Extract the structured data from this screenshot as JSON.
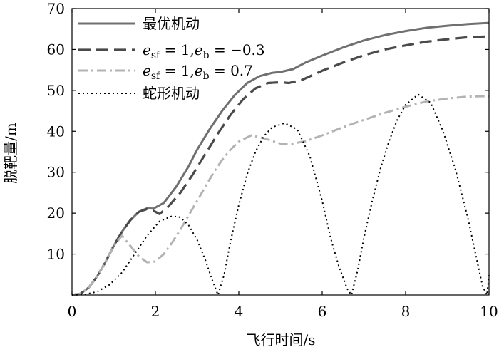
{
  "chart_data": {
    "type": "line",
    "title": "",
    "xlabel": "飞行时间/s",
    "ylabel": "脱靶量/m",
    "xlim": [
      0,
      10
    ],
    "ylim": [
      0,
      70
    ],
    "xticks": [
      0,
      2,
      4,
      6,
      8,
      10
    ],
    "yticks": [
      10,
      20,
      30,
      40,
      50,
      60,
      70
    ],
    "grid": false,
    "legend_position": "top-left",
    "series": [
      {
        "name": "最优机动",
        "legend_parts": {
          "main": "最优机动"
        },
        "color": "#707070",
        "dash": "solid",
        "points": [
          [
            0.0,
            0.0
          ],
          [
            0.2,
            0.3
          ],
          [
            0.4,
            1.8
          ],
          [
            0.6,
            4.5
          ],
          [
            0.8,
            8.0
          ],
          [
            1.0,
            12.0
          ],
          [
            1.2,
            15.5
          ],
          [
            1.4,
            18.3
          ],
          [
            1.6,
            20.3
          ],
          [
            1.8,
            21.2
          ],
          [
            1.95,
            21.1
          ],
          [
            2.2,
            22.5
          ],
          [
            2.5,
            26.5
          ],
          [
            2.8,
            31.5
          ],
          [
            3.0,
            35.5
          ],
          [
            3.3,
            40.5
          ],
          [
            3.6,
            45.0
          ],
          [
            3.9,
            48.8
          ],
          [
            4.2,
            51.8
          ],
          [
            4.5,
            53.5
          ],
          [
            4.8,
            54.3
          ],
          [
            5.0,
            54.5
          ],
          [
            5.3,
            55.2
          ],
          [
            5.6,
            56.8
          ],
          [
            6.0,
            58.5
          ],
          [
            6.5,
            60.5
          ],
          [
            7.0,
            62.2
          ],
          [
            7.5,
            63.5
          ],
          [
            8.0,
            64.5
          ],
          [
            8.5,
            65.3
          ],
          [
            9.0,
            65.8
          ],
          [
            9.5,
            66.2
          ],
          [
            10.0,
            66.5
          ]
        ]
      },
      {
        "name": "e_sf = 1, e_b = −0.3",
        "legend_parts": {
          "e1": "e",
          "s1": "sf",
          "eq1": " = 1,",
          "e2": "e",
          "s2": "b",
          "eq2": " = −0.3"
        },
        "color": "#4a4a4a",
        "dash": "long-dash",
        "points": [
          [
            0.0,
            0.0
          ],
          [
            0.2,
            0.3
          ],
          [
            0.4,
            1.8
          ],
          [
            0.6,
            4.5
          ],
          [
            0.8,
            8.0
          ],
          [
            1.0,
            12.0
          ],
          [
            1.2,
            15.5
          ],
          [
            1.4,
            18.3
          ],
          [
            1.6,
            20.3
          ],
          [
            1.8,
            21.0
          ],
          [
            1.95,
            20.6
          ],
          [
            2.1,
            19.8
          ],
          [
            2.3,
            21.5
          ],
          [
            2.6,
            25.0
          ],
          [
            2.9,
            29.5
          ],
          [
            3.2,
            34.5
          ],
          [
            3.5,
            39.5
          ],
          [
            3.8,
            44.0
          ],
          [
            4.1,
            47.8
          ],
          [
            4.4,
            50.5
          ],
          [
            4.7,
            51.8
          ],
          [
            5.0,
            52.0
          ],
          [
            5.2,
            51.8
          ],
          [
            5.5,
            52.5
          ],
          [
            6.0,
            54.8
          ],
          [
            6.5,
            56.8
          ],
          [
            7.0,
            58.6
          ],
          [
            7.5,
            60.0
          ],
          [
            8.0,
            61.0
          ],
          [
            8.5,
            61.9
          ],
          [
            9.0,
            62.5
          ],
          [
            9.5,
            63.0
          ],
          [
            10.0,
            63.2
          ]
        ]
      },
      {
        "name": "e_sf = 1, e_b = 0.7",
        "legend_parts": {
          "e1": "e",
          "s1": "sf",
          "eq1": " = 1,",
          "e2": "e",
          "s2": "b",
          "eq2": " = 0.7"
        },
        "color": "#b3b3b3",
        "dash": "dash-dot",
        "points": [
          [
            0.0,
            0.0
          ],
          [
            0.2,
            0.3
          ],
          [
            0.4,
            1.8
          ],
          [
            0.6,
            4.5
          ],
          [
            0.8,
            8.0
          ],
          [
            1.0,
            12.0
          ],
          [
            1.2,
            14.5
          ],
          [
            1.4,
            12.0
          ],
          [
            1.6,
            9.5
          ],
          [
            1.8,
            8.0
          ],
          [
            2.0,
            8.2
          ],
          [
            2.2,
            10.0
          ],
          [
            2.4,
            12.8
          ],
          [
            2.6,
            16.0
          ],
          [
            2.8,
            19.5
          ],
          [
            3.0,
            23.0
          ],
          [
            3.2,
            26.5
          ],
          [
            3.4,
            30.0
          ],
          [
            3.6,
            33.0
          ],
          [
            3.8,
            35.5
          ],
          [
            4.0,
            37.5
          ],
          [
            4.3,
            39.0
          ],
          [
            4.6,
            38.3
          ],
          [
            5.0,
            37.0
          ],
          [
            5.3,
            37.0
          ],
          [
            5.6,
            37.6
          ],
          [
            6.0,
            39.0
          ],
          [
            6.5,
            41.0
          ],
          [
            7.0,
            42.8
          ],
          [
            7.5,
            44.5
          ],
          [
            8.0,
            46.0
          ],
          [
            8.5,
            47.3
          ],
          [
            9.0,
            48.0
          ],
          [
            9.5,
            48.5
          ],
          [
            10.0,
            48.6
          ]
        ]
      },
      {
        "name": "蛇形机动",
        "legend_parts": {
          "main": "蛇形机动"
        },
        "color": "#000000",
        "dash": "dotted",
        "points": [
          [
            0.0,
            0.0
          ],
          [
            0.3,
            0.1
          ],
          [
            0.6,
            0.8
          ],
          [
            0.9,
            2.5
          ],
          [
            1.2,
            5.5
          ],
          [
            1.5,
            10.0
          ],
          [
            1.8,
            14.5
          ],
          [
            2.1,
            18.0
          ],
          [
            2.4,
            19.3
          ],
          [
            2.6,
            19.0
          ],
          [
            2.8,
            17.0
          ],
          [
            3.0,
            13.5
          ],
          [
            3.2,
            8.5
          ],
          [
            3.35,
            4.0
          ],
          [
            3.5,
            0.0
          ],
          [
            3.65,
            5.0
          ],
          [
            3.8,
            13.0
          ],
          [
            4.0,
            22.0
          ],
          [
            4.2,
            29.5
          ],
          [
            4.4,
            35.0
          ],
          [
            4.6,
            38.8
          ],
          [
            4.8,
            41.0
          ],
          [
            5.1,
            42.0
          ],
          [
            5.4,
            40.5
          ],
          [
            5.7,
            34.0
          ],
          [
            6.0,
            23.0
          ],
          [
            6.2,
            14.0
          ],
          [
            6.4,
            7.0
          ],
          [
            6.6,
            1.5
          ],
          [
            6.7,
            0.0
          ],
          [
            6.85,
            6.0
          ],
          [
            7.0,
            14.0
          ],
          [
            7.2,
            23.0
          ],
          [
            7.4,
            31.0
          ],
          [
            7.6,
            37.5
          ],
          [
            7.8,
            42.8
          ],
          [
            8.0,
            46.5
          ],
          [
            8.3,
            49.0
          ],
          [
            8.6,
            47.0
          ],
          [
            8.9,
            40.0
          ],
          [
            9.2,
            30.5
          ],
          [
            9.5,
            18.5
          ],
          [
            9.7,
            9.0
          ],
          [
            9.85,
            2.0
          ],
          [
            9.95,
            0.0
          ],
          [
            10.0,
            4.8
          ]
        ]
      }
    ]
  }
}
